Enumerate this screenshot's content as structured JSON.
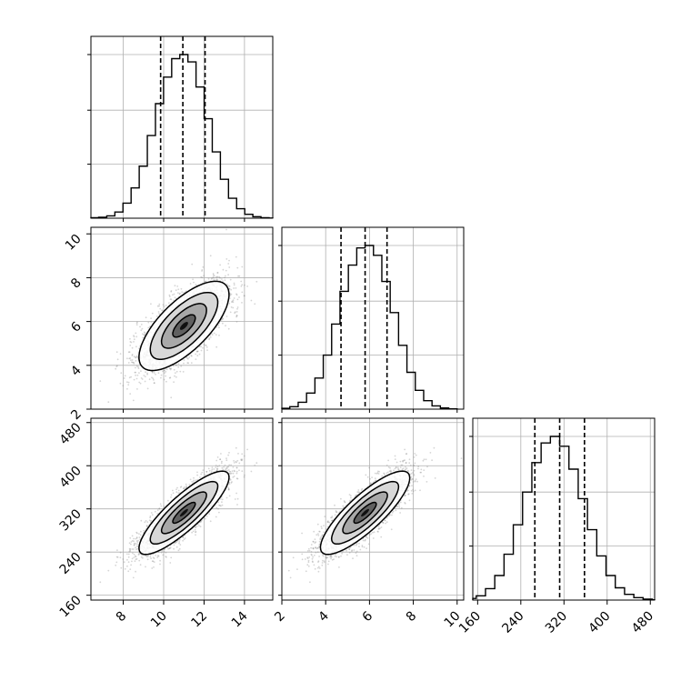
{
  "chart_data": {
    "type": "corner",
    "parameters": [
      {
        "xlim": [
          6.4,
          15.4
        ],
        "ticks": [
          8,
          10,
          12,
          14
        ],
        "mean": 11.0,
        "sd": 1.1,
        "quantiles": [
          9.85,
          10.95,
          12.05
        ]
      },
      {
        "xlim": [
          2.0,
          10.3
        ],
        "ticks": [
          2,
          4,
          6,
          8,
          10
        ],
        "mean": 5.8,
        "sd": 1.0,
        "quantiles": [
          4.7,
          5.8,
          6.8
        ]
      },
      {
        "xlim": [
          151,
          488
        ],
        "ticks": [
          160,
          240,
          320,
          400,
          480
        ],
        "mean": 312,
        "sd": 45,
        "quantiles": [
          266,
          312,
          358
        ]
      }
    ],
    "correlation": 0.7,
    "histograms": [
      {
        "parameter": 0,
        "counts": [
          3,
          6,
          14,
          38,
          92,
          185,
          318,
          505,
          700,
          862,
          975,
          1000,
          955,
          802,
          608,
          405,
          238,
          122,
          58,
          24,
          9,
          3,
          1
        ]
      },
      {
        "parameter": 1,
        "counts": [
          2,
          5,
          15,
          42,
          98,
          190,
          330,
          520,
          720,
          880,
          985,
          1000,
          940,
          780,
          590,
          390,
          225,
          115,
          52,
          20,
          7,
          2
        ]
      },
      {
        "parameter": 2,
        "counts": [
          4,
          10,
          26,
          70,
          150,
          280,
          460,
          660,
          840,
          960,
          1000,
          940,
          800,
          620,
          430,
          270,
          150,
          75,
          35,
          15,
          6,
          2
        ]
      }
    ],
    "tick_labels": {
      "x": [
        [
          "8",
          "10",
          "12",
          "14"
        ],
        [
          "2",
          "4",
          "6",
          "8",
          "10"
        ],
        [
          "160",
          "240",
          "320",
          "400",
          "480"
        ]
      ],
      "y": [
        [
          "2",
          "4",
          "6",
          "8",
          "10"
        ],
        [
          "160",
          "240",
          "320",
          "400",
          "480"
        ]
      ]
    },
    "grid": true,
    "legend": "none"
  }
}
